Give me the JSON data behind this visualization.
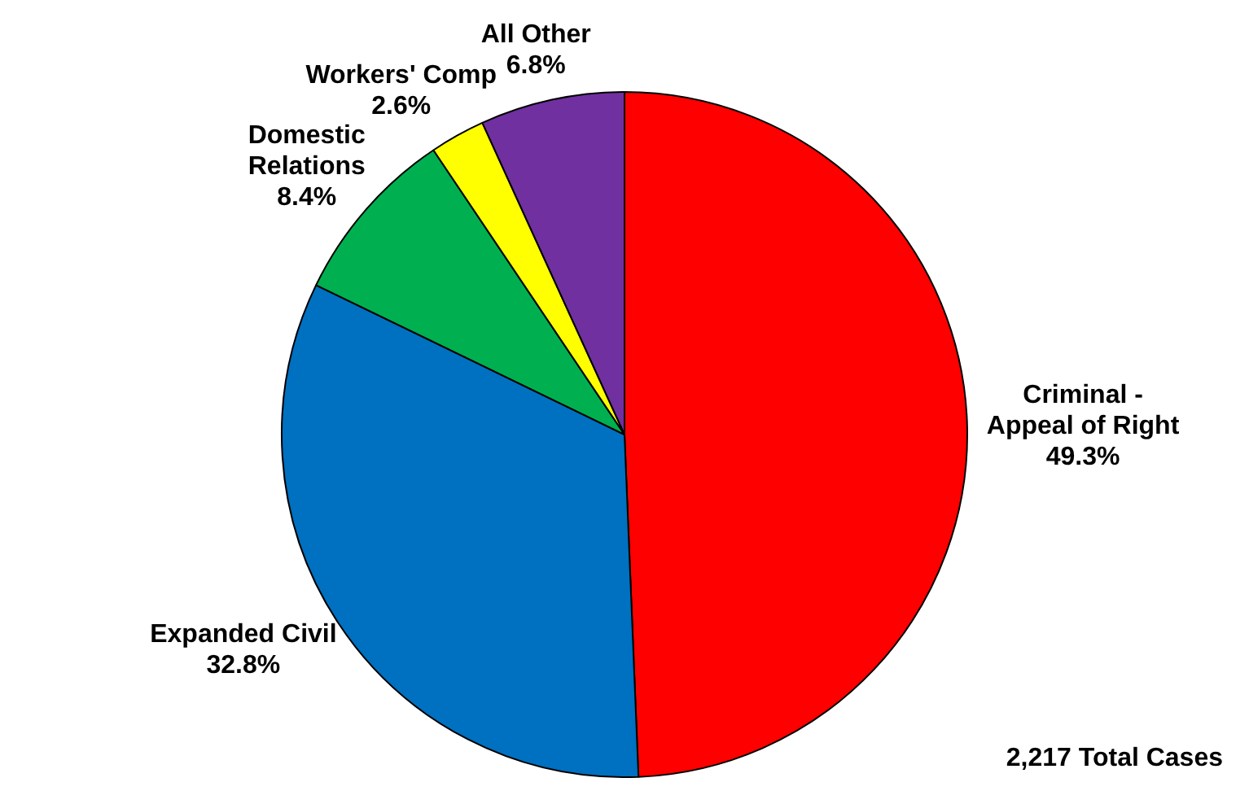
{
  "chart_data": {
    "type": "pie",
    "categories": [
      "Criminal - Appeal of Right",
      "Expanded Civil",
      "Domestic Relations",
      "Workers' Comp",
      "All Other"
    ],
    "values": [
      49.3,
      32.8,
      8.4,
      2.6,
      6.8
    ],
    "value_labels": [
      "49.3%",
      "32.8%",
      "8.4%",
      "2.6%",
      "6.8%"
    ],
    "colors": [
      "#ff0000",
      "#0070c0",
      "#00b050",
      "#ffff00",
      "#7030a0"
    ],
    "legend": false,
    "annotations": [
      "2,217 Total Cases"
    ]
  }
}
